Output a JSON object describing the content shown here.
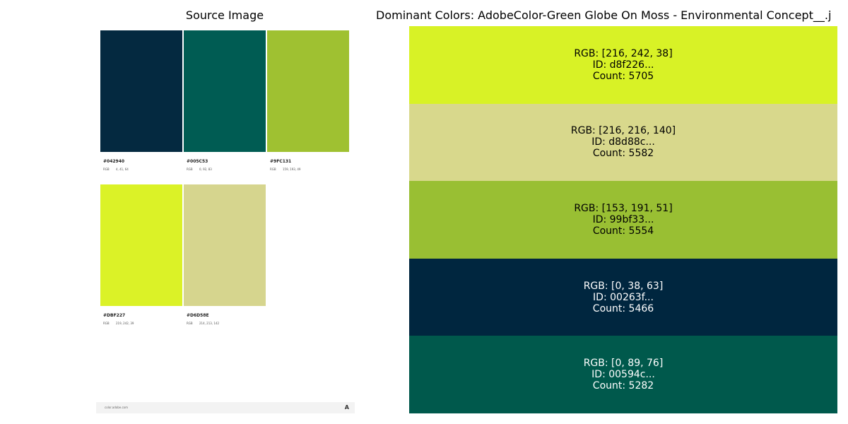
{
  "left_panel": {
    "title": "Source Image",
    "swatches": [
      {
        "hex": "#042940",
        "rgb_label": "RGB",
        "rgb_values": "4, 41, 64",
        "color": "#042940"
      },
      {
        "hex": "#005C53",
        "rgb_label": "RGB",
        "rgb_values": "0, 92, 83",
        "color": "#005C53"
      },
      {
        "hex": "#9FC131",
        "rgb_label": "RGB",
        "rgb_values": "159, 193, 49",
        "color": "#9FC131"
      },
      {
        "hex": "#DBF227",
        "rgb_label": "RGB",
        "rgb_values": "219, 242, 39",
        "color": "#DBF227"
      },
      {
        "hex": "#D6D58E",
        "rgb_label": "RGB",
        "rgb_values": "214, 213, 142",
        "color": "#D6D58E"
      }
    ],
    "footer_url": "color.adobe.com",
    "footer_logo": "A"
  },
  "right_panel": {
    "title": "Dominant Colors: AdobeColor-Green Globe On Moss - Environmental Concept__.j",
    "colors": [
      {
        "rgb": "RGB: [216, 242, 38]",
        "id": "ID: d8f226...",
        "count": "Count: 5705",
        "fill": "#d8f226",
        "text_color": "#000000"
      },
      {
        "rgb": "RGB: [216, 216, 140]",
        "id": "ID: d8d88c...",
        "count": "Count: 5582",
        "fill": "#d8d88c",
        "text_color": "#000000"
      },
      {
        "rgb": "RGB: [153, 191, 51]",
        "id": "ID: 99bf33...",
        "count": "Count: 5554",
        "fill": "#99bf33",
        "text_color": "#000000"
      },
      {
        "rgb": "RGB: [0, 38, 63]",
        "id": "ID: 00263f...",
        "count": "Count: 5466",
        "fill": "#00263f",
        "text_color": "#ffffff"
      },
      {
        "rgb": "RGB: [0, 89, 76]",
        "id": "ID: 00594c...",
        "count": "Count: 5282",
        "fill": "#00594c",
        "text_color": "#ffffff"
      }
    ]
  }
}
